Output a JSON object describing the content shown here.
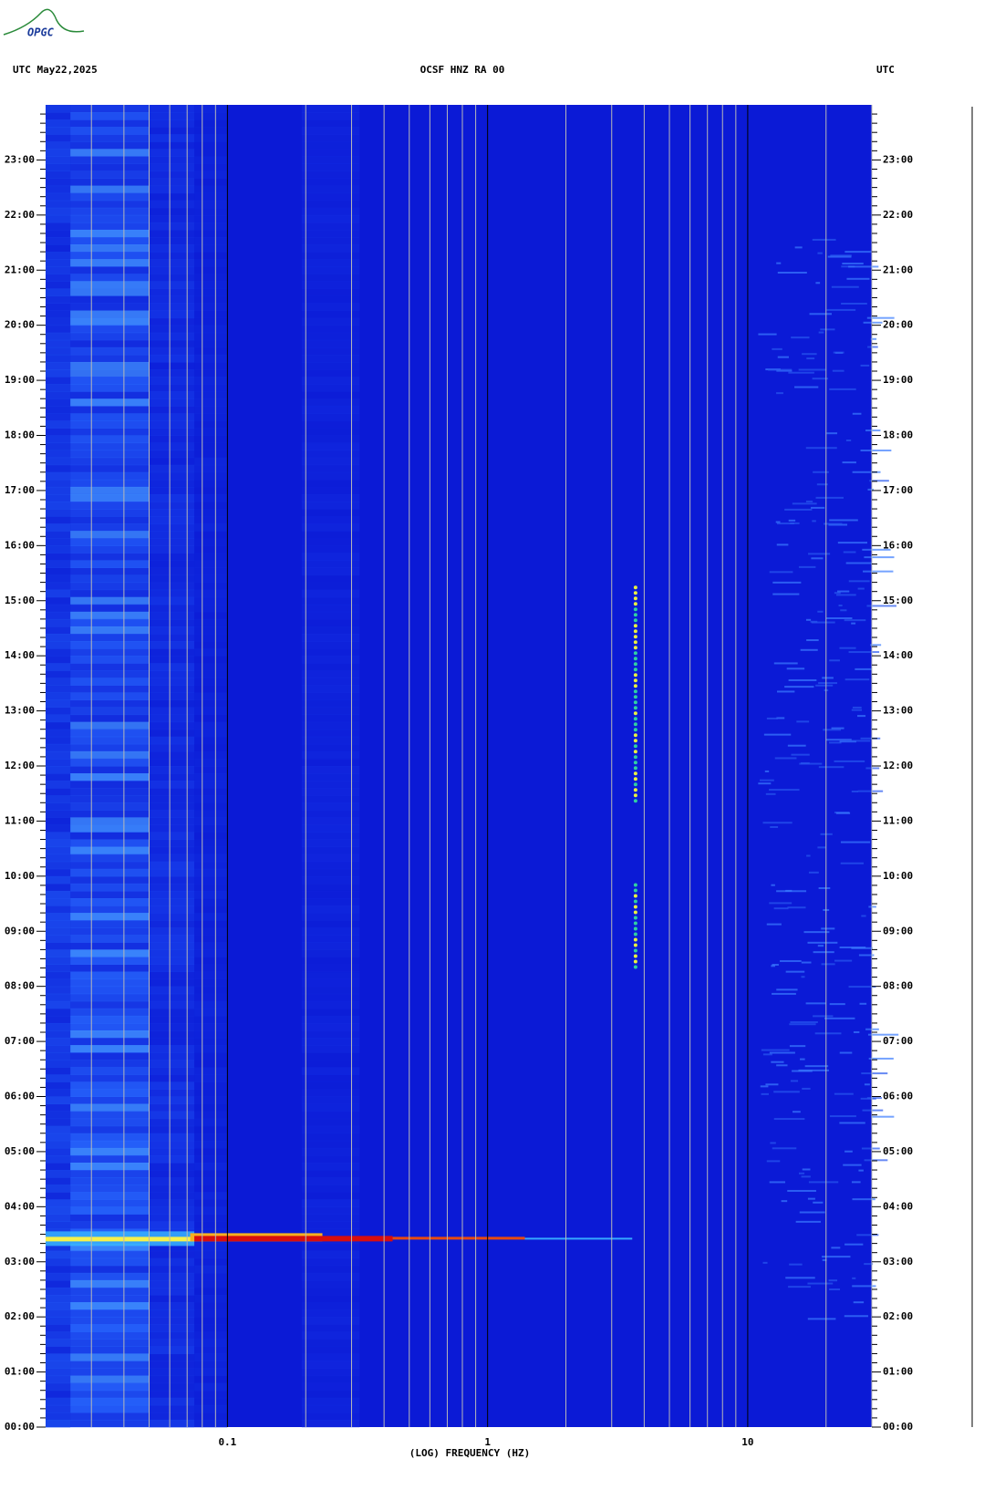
{
  "chart_data": {
    "type": "spectrogram",
    "logo": "OPGC",
    "title": "OCSF HNZ RA 00",
    "left_header": "UTC  May22,2025",
    "right_header": "UTC",
    "xlabel": "(LOG) FREQUENCY (HZ)",
    "xscale": "log",
    "xlim": [
      0.02,
      30
    ],
    "xticks": [
      0.1,
      1,
      10
    ],
    "xminorticks": [
      0.03,
      0.04,
      0.05,
      0.06,
      0.07,
      0.08,
      0.09,
      0.2,
      0.3,
      0.4,
      0.5,
      0.6,
      0.7,
      0.8,
      0.9,
      2,
      3,
      4,
      5,
      6,
      7,
      8,
      9,
      20,
      30
    ],
    "ylim": [
      0,
      24
    ],
    "yticks": [
      {
        "value": 0,
        "label": "00:00"
      },
      {
        "value": 1,
        "label": "01:00"
      },
      {
        "value": 2,
        "label": "02:00"
      },
      {
        "value": 3,
        "label": "03:00"
      },
      {
        "value": 4,
        "label": "04:00"
      },
      {
        "value": 5,
        "label": "05:00"
      },
      {
        "value": 6,
        "label": "06:00"
      },
      {
        "value": 7,
        "label": "07:00"
      },
      {
        "value": 8,
        "label": "08:00"
      },
      {
        "value": 9,
        "label": "09:00"
      },
      {
        "value": 10,
        "label": "10:00"
      },
      {
        "value": 11,
        "label": "11:00"
      },
      {
        "value": 12,
        "label": "12:00"
      },
      {
        "value": 13,
        "label": "13:00"
      },
      {
        "value": 14,
        "label": "14:00"
      },
      {
        "value": 15,
        "label": "15:00"
      },
      {
        "value": 16,
        "label": "16:00"
      },
      {
        "value": 17,
        "label": "17:00"
      },
      {
        "value": 18,
        "label": "18:00"
      },
      {
        "value": 19,
        "label": "19:00"
      },
      {
        "value": 20,
        "label": "20:00"
      },
      {
        "value": 21,
        "label": "21:00"
      },
      {
        "value": 22,
        "label": "22:00"
      },
      {
        "value": 23,
        "label": "23:00"
      }
    ]
  }
}
